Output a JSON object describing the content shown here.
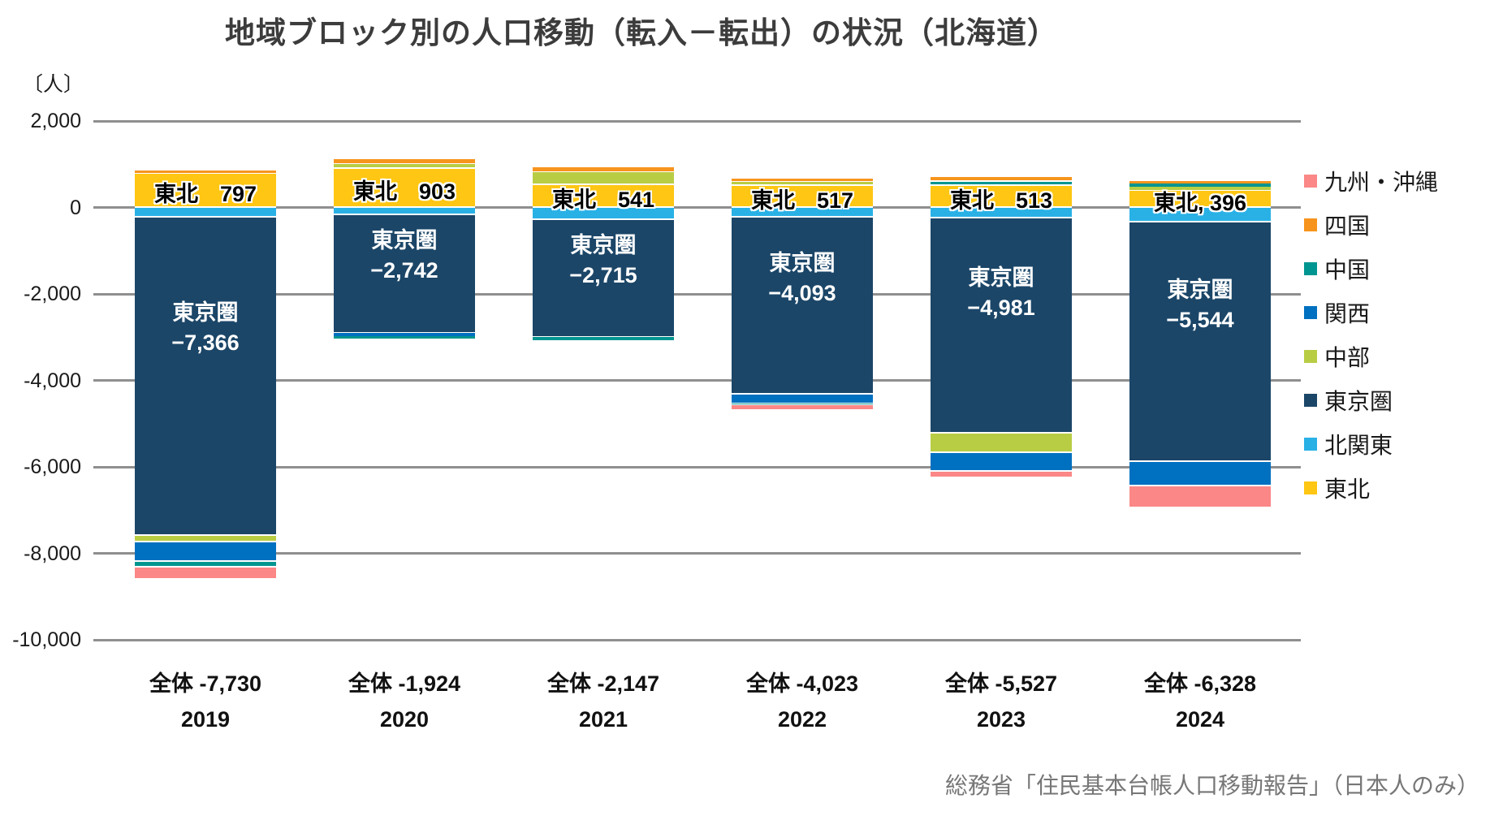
{
  "title": "地域ブロック別の人口移動（転入－転出）の状況（北海道）",
  "unit_label": "〔人〕",
  "source": "総務省「住民基本台帳人口移動報告」（日本人のみ）",
  "chart_data": {
    "type": "bar",
    "stacked": true,
    "title": "地域ブロック別の人口移動（転入－転出）の状況（北海道）",
    "ylabel": "人",
    "categories": [
      "2019",
      "2020",
      "2021",
      "2022",
      "2023",
      "2024"
    ],
    "totals": [
      -7730,
      -1924,
      -2147,
      -4023,
      -5527,
      -6328
    ],
    "total_labels": [
      "全体 -7,730",
      "全体 -1,924",
      "全体 -2,147",
      "全体 -4,023",
      "全体 -5,527",
      "全体 -6,328"
    ],
    "ylim": [
      -10000,
      2000
    ],
    "yticks": [
      2000,
      0,
      -2000,
      -4000,
      -6000,
      -8000,
      -10000
    ],
    "ytick_labels": [
      "2,000",
      "0",
      "-2,000",
      "-4,000",
      "-6,000",
      "-8,000",
      "-10,000"
    ],
    "grid": true,
    "legend_position": "right",
    "series": [
      {
        "key": "tohoku",
        "name": "東北",
        "color": "#FFC613",
        "values": [
          797,
          903,
          541,
          517,
          513,
          396
        ]
      },
      {
        "key": "kita-kanto",
        "name": "北関東",
        "color": "#29B1E6",
        "values": [
          -210,
          -160,
          -280,
          -220,
          -230,
          -320
        ]
      },
      {
        "key": "tokyo-area",
        "name": "東京圏",
        "color": "#1B4668",
        "values": [
          -7366,
          -2742,
          -2715,
          -4093,
          -4981,
          -5544
        ]
      },
      {
        "key": "chubu",
        "name": "中部",
        "color": "#B9CD44",
        "values": [
          -150,
          125,
          290,
          100,
          -460,
          85
        ]
      },
      {
        "key": "kansai",
        "name": "関西",
        "color": "#0070C0",
        "values": [
          -450,
          -70,
          0,
          -230,
          -425,
          -560
        ]
      },
      {
        "key": "chugoku",
        "name": "中国",
        "color": "#009590",
        "values": [
          -130,
          -70,
          -73,
          -20,
          105,
          80
        ]
      },
      {
        "key": "shikoku",
        "name": "四国",
        "color": "#F7941D",
        "values": [
          60,
          90,
          90,
          50,
          105,
          55
        ]
      },
      {
        "key": "kyushu-okinawa",
        "name": "九州・沖縄",
        "color": "#FB8787",
        "values": [
          -281,
          0,
          0,
          -127,
          -154,
          -520
        ]
      }
    ],
    "legend_order": [
      "九州・沖縄",
      "四国",
      "中国",
      "関西",
      "中部",
      "東京圏",
      "北関東",
      "東北"
    ],
    "bar_labels": {
      "tohoku": [
        "東北　797",
        "東北　903",
        "東北　541",
        "東北　517",
        "東北　513",
        "東北, 396"
      ],
      "tokyo_area": [
        [
          "東京圏",
          "−7,366"
        ],
        [
          "東京圏",
          "−2,742"
        ],
        [
          "東京圏",
          "−2,715"
        ],
        [
          "東京圏",
          "−4,093"
        ],
        [
          "東京圏",
          "−4,981"
        ],
        [
          "東京圏",
          "−5,544"
        ]
      ]
    }
  }
}
